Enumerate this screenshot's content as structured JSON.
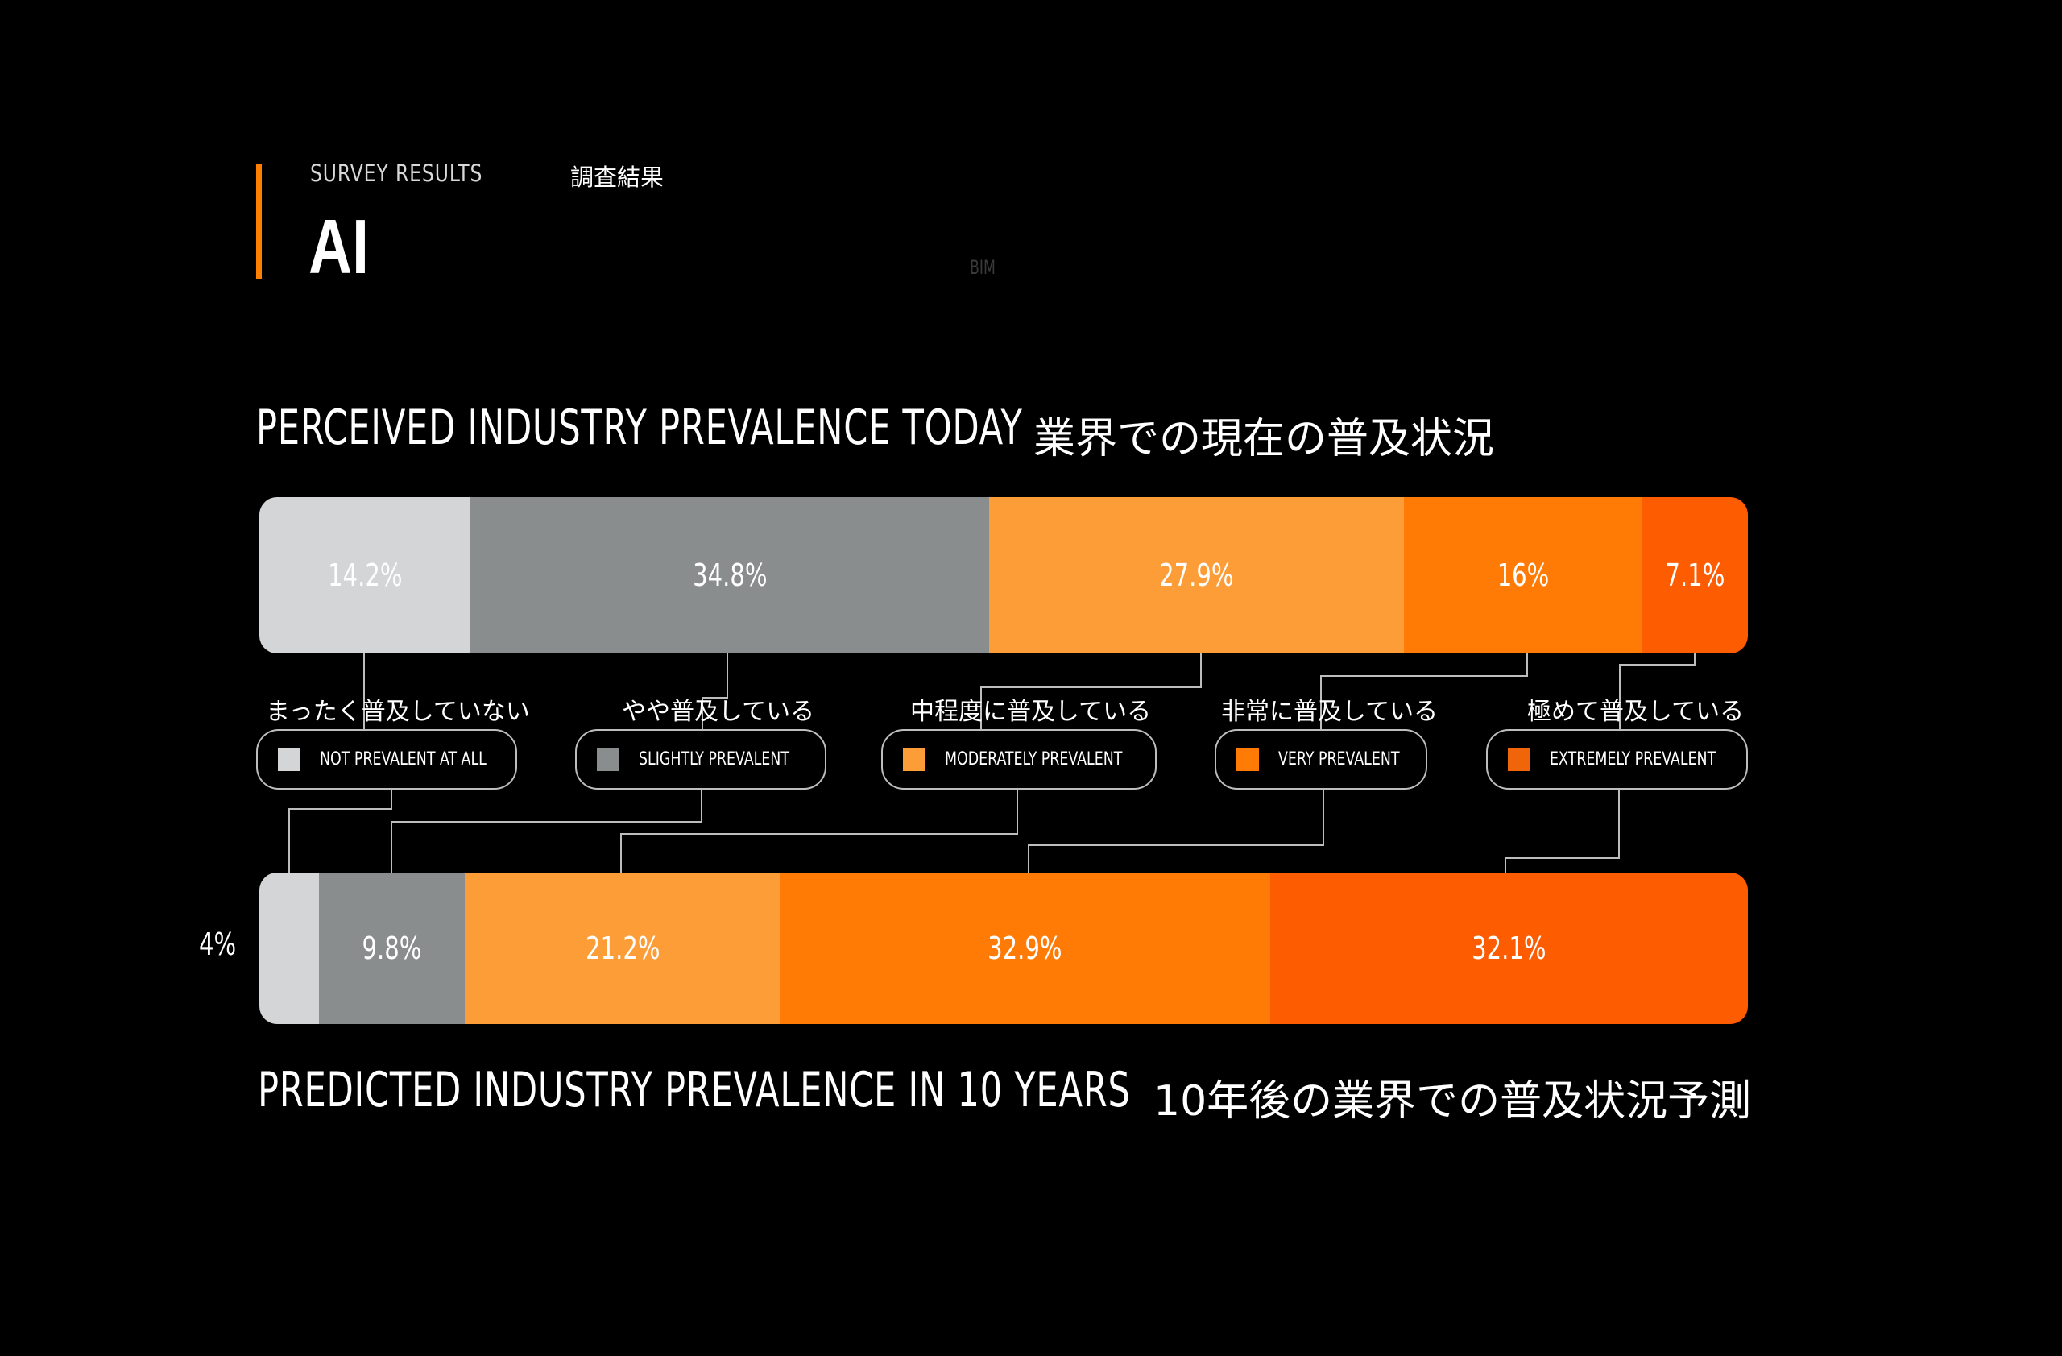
{
  "header": {
    "eyebrow": "SURVEY RESULTS",
    "eyebrow_jp": "調査結果",
    "title": "AI",
    "ghost_label": "BIM",
    "accent_color": "#ff7f00"
  },
  "today": {
    "title_en": "PERCEIVED INDUSTRY PREVALENCE TODAY",
    "title_jp": "業界での現在の普及状況",
    "segments": [
      {
        "label": "14.2%",
        "value": 14.2,
        "color": "#d3d5d6"
      },
      {
        "label": "34.8%",
        "value": 34.8,
        "color": "#8a8d8e"
      },
      {
        "label": "27.9%",
        "value": 27.9,
        "color": "#fd9d38"
      },
      {
        "label": "16%",
        "value": 16,
        "color": "#ff7b05"
      },
      {
        "label": "7.1%",
        "value": 7.1,
        "color": "#fd5c00"
      }
    ]
  },
  "future": {
    "title_en": "PREDICTED INDUSTRY PREVALENCE IN 10 YEARS",
    "title_jp": "10年後の業界での普及状況予測",
    "outside_label": "4%",
    "segments": [
      {
        "label": "",
        "value": 4,
        "color": "#d3d5d6"
      },
      {
        "label": "9.8%",
        "value": 9.8,
        "color": "#8a8d8e"
      },
      {
        "label": "21.2%",
        "value": 21.2,
        "color": "#fd9d38"
      },
      {
        "label": "32.9%",
        "value": 32.9,
        "color": "#ff7b05"
      },
      {
        "label": "32.1%",
        "value": 32.1,
        "color": "#fd5c00"
      }
    ]
  },
  "legend": [
    {
      "jp": "まったく普及していない",
      "en": "NOT PREVALENT AT ALL",
      "color": "#d3d5d6"
    },
    {
      "jp": "やや普及している",
      "en": "SLIGHTLY PREVALENT",
      "color": "#8a8d8e"
    },
    {
      "jp": "中程度に普及している",
      "en": "MODERATELY PREVALENT",
      "color": "#fd9d38"
    },
    {
      "jp": "非常に普及している",
      "en": "VERY PREVALENT",
      "color": "#ff7b05"
    },
    {
      "jp": "極めて普及している",
      "en": "EXTREMELY PREVALENT",
      "color": "#f0650a"
    }
  ],
  "chart_data": [
    {
      "type": "bar",
      "orientation": "horizontal-stacked-100",
      "title": "PERCEIVED INDUSTRY PREVALENCE TODAY / 業界での現在の普及状況",
      "categories": [
        "NOT PREVALENT AT ALL",
        "SLIGHTLY PREVALENT",
        "MODERATELY PREVALENT",
        "VERY PREVALENT",
        "EXTREMELY PREVALENT"
      ],
      "values": [
        14.2,
        34.8,
        27.9,
        16,
        7.1
      ],
      "unit": "%",
      "grid": false,
      "legend_position": "between bars"
    },
    {
      "type": "bar",
      "orientation": "horizontal-stacked-100",
      "title": "PREDICTED INDUSTRY PREVALENCE IN 10 YEARS / 10年後の業界での普及状況予測",
      "categories": [
        "NOT PREVALENT AT ALL",
        "SLIGHTLY PREVALENT",
        "MODERATELY PREVALENT",
        "VERY PREVALENT",
        "EXTREMELY PREVALENT"
      ],
      "values": [
        4,
        9.8,
        21.2,
        32.9,
        32.1
      ],
      "unit": "%",
      "grid": false,
      "legend_position": "between bars"
    }
  ]
}
